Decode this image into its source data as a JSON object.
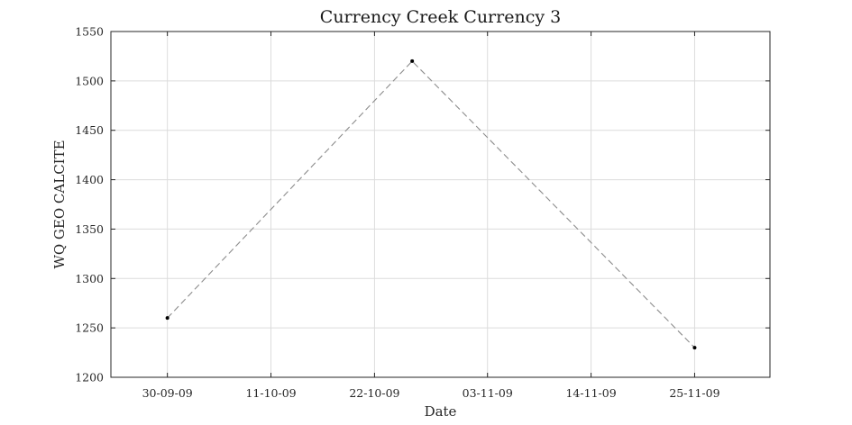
{
  "chart_data": {
    "type": "line",
    "title": "Currency Creek Currency 3",
    "xlabel": "Date",
    "ylabel": "WQ GEO CALCITE",
    "x": [
      "2009-09-30",
      "2009-10-26",
      "2009-11-25"
    ],
    "series": [
      {
        "values": [
          1260,
          1520,
          1230
        ],
        "color": "#8c8c8c",
        "marker_color": "#000000",
        "line_style": "dashed"
      }
    ],
    "xlim": [
      "2009-09-24",
      "2009-12-03"
    ],
    "ylim": [
      1200,
      1550
    ],
    "x_tick_dates": [
      "2009-09-30",
      "2009-10-11",
      "2009-10-22",
      "2009-11-03",
      "2009-11-14",
      "2009-11-25"
    ],
    "x_tick_labels": [
      "30-09-09",
      "11-10-09",
      "22-10-09",
      "03-11-09",
      "14-11-09",
      "25-11-09"
    ],
    "y_ticks": [
      1200,
      1250,
      1300,
      1350,
      1400,
      1450,
      1500,
      1550
    ],
    "y_tick_labels": [
      "1200",
      "1250",
      "1300",
      "1350",
      "1400",
      "1450",
      "1500",
      "1550"
    ],
    "grid": true,
    "box": true,
    "colors": {
      "background": "#ffffff",
      "axes": "#262626",
      "grid": "#dcdcdc"
    }
  }
}
